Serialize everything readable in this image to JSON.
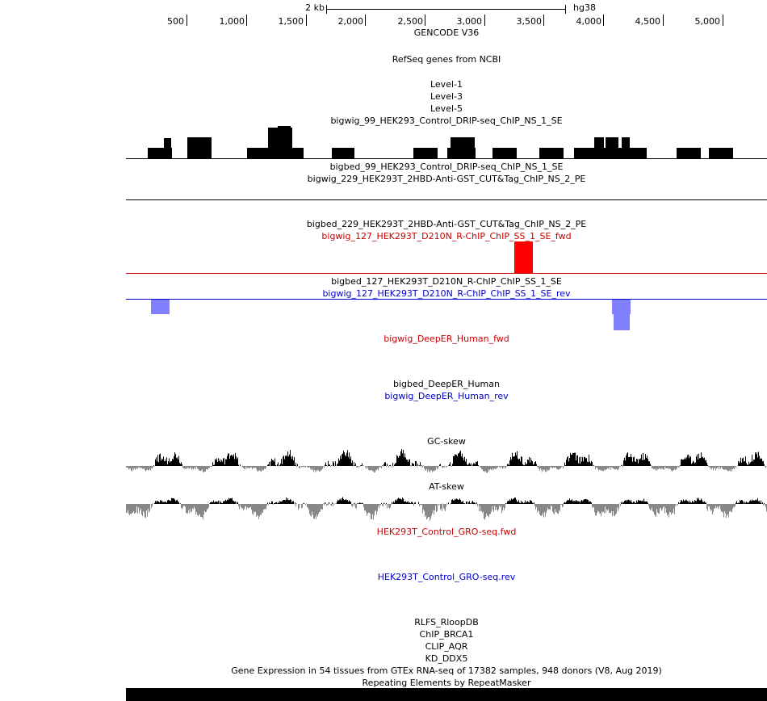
{
  "ruler": {
    "scale_label": "2 kb",
    "assembly": "hg38",
    "ticks": [
      "500",
      "1,000",
      "1,500",
      "2,000",
      "2,500",
      "3,000",
      "3,500",
      "4,000",
      "4,500",
      "5,000"
    ]
  },
  "tracks": {
    "gencode": "GENCODE V36",
    "refseq": "RefSeq genes from NCBI",
    "level1": "Level-1",
    "level3": "Level-3",
    "level5": "Level-5",
    "drip_bigwig": "bigwig_99_HEK293_Control_DRIP-seq_ChIP_NS_1_SE",
    "drip_bigbed": "bigbed_99_HEK293_Control_DRIP-seq_ChIP_NS_1_SE",
    "cut_bigwig": "bigwig_229_HEK293T_2HBD-Anti-GST_CUT&Tag_ChIP_NS_2_PE",
    "cut_bigbed": "bigbed_229_HEK293T_2HBD-Anti-GST_CUT&Tag_ChIP_NS_2_PE",
    "rchip_fwd": "bigwig_127_HEK293T_D210N_R-ChIP_ChIP_SS_1_SE_fwd",
    "rchip_bigbed": "bigbed_127_HEK293T_D210N_R-ChIP_ChIP_SS_1_SE",
    "rchip_rev": "bigwig_127_HEK293T_D210N_R-ChIP_ChIP_SS_1_SE_rev",
    "deeper_fwd": "bigwig_DeepER_Human_fwd",
    "deeper_bigbed": "bigbed_DeepER_Human",
    "deeper_rev": "bigwig_DeepER_Human_rev",
    "gc_skew": "GC-skew",
    "at_skew": "AT-skew",
    "gro_fwd": "HEK293T_Control_GRO-seq.fwd",
    "gro_rev": "HEK293T_Control_GRO-seq.rev",
    "rlfs": "RLFS_RloopDB",
    "brca1": "ChIP_BRCA1",
    "aqr": "CLIP_AQR",
    "ddx5": "KD_DDX5",
    "gtex": "Gene Expression in 54 tissues from GTEx RNA-seq of 17382 samples, 948 donors (V8, Aug 2019)",
    "repeatmasker": "Repeating Elements by RepeatMasker"
  },
  "colors": {
    "fwd": "#cc0000",
    "rev": "#0000cc",
    "rev_bar": "#8080ff",
    "skew_pos": "#000000",
    "skew_neg": "#888888"
  }
}
